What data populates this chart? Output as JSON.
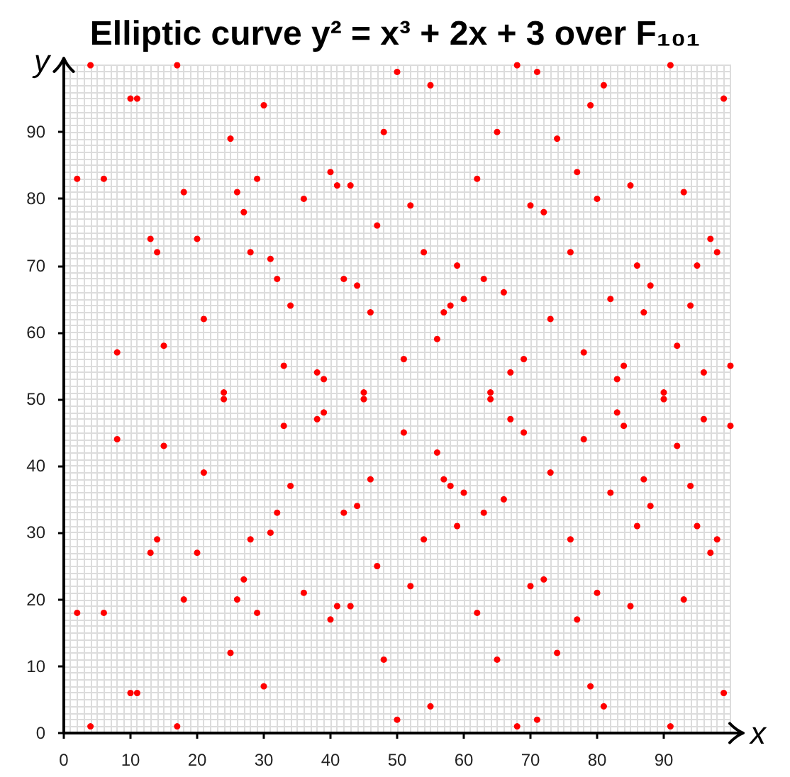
{
  "chart_data": {
    "type": "scatter",
    "title": "Elliptic curve y² = x³ + 2x + 3 over F₁₀₁",
    "xlabel": "x",
    "ylabel": "y",
    "x": [
      2,
      2,
      4,
      4,
      6,
      6,
      8,
      8,
      10,
      10,
      11,
      11,
      13,
      13,
      14,
      14,
      15,
      15,
      17,
      17,
      18,
      18,
      20,
      20,
      21,
      21,
      24,
      24,
      25,
      25,
      26,
      26,
      27,
      27,
      28,
      28,
      29,
      29,
      30,
      30,
      31,
      31,
      32,
      32,
      33,
      33,
      34,
      34,
      36,
      36,
      38,
      38,
      39,
      39,
      40,
      40,
      41,
      41,
      42,
      42,
      43,
      43,
      44,
      44,
      45,
      45,
      46,
      46,
      47,
      47,
      48,
      48,
      50,
      50,
      51,
      51,
      52,
      52,
      54,
      54,
      55,
      55,
      56,
      56,
      57,
      57,
      58,
      58,
      59,
      59,
      60,
      60,
      62,
      62,
      63,
      63,
      64,
      64,
      65,
      65,
      66,
      66,
      67,
      67,
      68,
      68,
      69,
      69,
      70,
      70,
      71,
      71,
      72,
      72,
      73,
      73,
      74,
      74,
      76,
      76,
      77,
      77,
      78,
      78,
      79,
      79,
      80,
      80,
      81,
      81,
      82,
      82,
      83,
      83,
      84,
      84,
      85,
      85,
      86,
      86,
      87,
      87,
      88,
      88,
      90,
      90,
      91,
      91,
      92,
      92,
      93,
      93,
      94,
      94,
      95,
      95,
      96,
      96,
      97,
      97,
      98,
      98,
      99,
      99,
      100,
      100
    ],
    "values": [
      83,
      18,
      100,
      1,
      83,
      18,
      57,
      44,
      95,
      6,
      95,
      6,
      74,
      27,
      72,
      29,
      58,
      43,
      100,
      1,
      81,
      20,
      74,
      27,
      62,
      39,
      51,
      50,
      89,
      12,
      81,
      20,
      78,
      23,
      72,
      29,
      83,
      18,
      94,
      7,
      71,
      30,
      68,
      33,
      55,
      46,
      64,
      37,
      80,
      21,
      54,
      47,
      53,
      48,
      84,
      17,
      82,
      19,
      68,
      33,
      82,
      19,
      67,
      34,
      51,
      50,
      63,
      38,
      76,
      25,
      90,
      11,
      99,
      2,
      56,
      45,
      79,
      22,
      72,
      29,
      97,
      4,
      59,
      42,
      63,
      38,
      64,
      37,
      70,
      31,
      65,
      36,
      83,
      18,
      68,
      33,
      51,
      50,
      90,
      11,
      66,
      35,
      54,
      47,
      100,
      1,
      56,
      45,
      79,
      22,
      99,
      2,
      78,
      23,
      62,
      39,
      89,
      12,
      72,
      29,
      84,
      17,
      57,
      44,
      94,
      7,
      80,
      21,
      97,
      4,
      65,
      36,
      53,
      48,
      55,
      46,
      82,
      19,
      70,
      31,
      63,
      38,
      67,
      34,
      51,
      50,
      100,
      1,
      58,
      43,
      81,
      20,
      64,
      37,
      70,
      31,
      54,
      47,
      74,
      27,
      72,
      29,
      95,
      6,
      55,
      46
    ],
    "color": "#ff0000",
    "marker": "circle",
    "xlim": [
      0,
      100
    ],
    "ylim": [
      0,
      100
    ],
    "xticks": [
      0,
      10,
      20,
      30,
      40,
      50,
      60,
      70,
      80,
      90
    ],
    "yticks": [
      0,
      10,
      20,
      30,
      40,
      50,
      60,
      70,
      80,
      90
    ],
    "grid": true
  }
}
